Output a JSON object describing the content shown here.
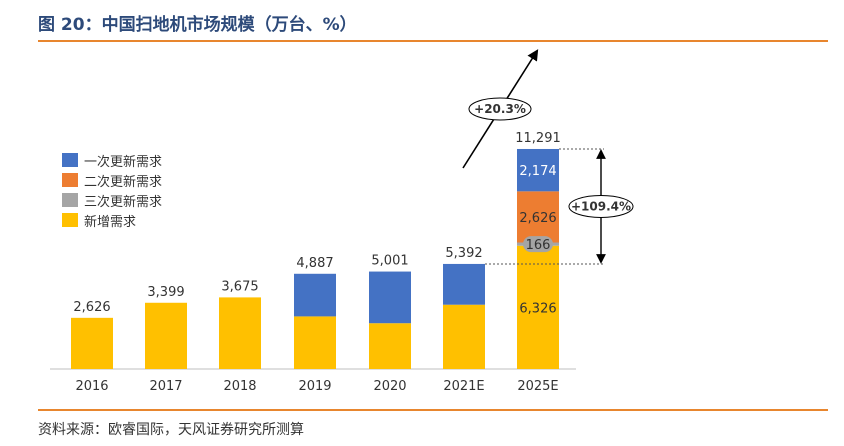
{
  "title": "图 20：中国扫地机市场规模（万台、%）",
  "source": "资料来源：欧睿国际，天风证券研究所测算",
  "colors": {
    "accent_rule": "#e8862e",
    "title": "#2d4a7a",
    "first_replacement": "#4472c4",
    "second_replacement": "#ed7d31",
    "third_replacement": "#a5a5a5",
    "new_demand": "#ffc000"
  },
  "chart_data": {
    "type": "bar",
    "stacked": true,
    "categories": [
      "2016",
      "2017",
      "2018",
      "2019",
      "2020",
      "2021E",
      "2025E"
    ],
    "series": [
      {
        "name": "新增需求",
        "key": "new_demand",
        "values": [
          2626,
          3399,
          3675,
          2700,
          2350,
          3300,
          6326
        ]
      },
      {
        "name": "三次更新需求",
        "key": "third_replacement",
        "values": [
          0,
          0,
          0,
          0,
          0,
          0,
          166
        ]
      },
      {
        "name": "二次更新需求",
        "key": "second_replacement",
        "values": [
          0,
          0,
          0,
          0,
          0,
          0,
          2626
        ]
      },
      {
        "name": "一次更新需求",
        "key": "first_replacement",
        "values": [
          0,
          0,
          0,
          2187,
          2651,
          2092,
          2174
        ]
      }
    ],
    "legend_order": [
      "一次更新需求",
      "二次更新需求",
      "三次更新需求",
      "新增需求"
    ],
    "totals": [
      "2,626",
      "3,399",
      "3,675",
      "4,887",
      "5,001",
      "5,392",
      "11,291"
    ],
    "segment_labels_2025E": {
      "new_demand": "6,326",
      "third_replacement": "166",
      "second_replacement": "2,626",
      "first_replacement": "2,174"
    },
    "annotations": [
      {
        "text": "+20.3%",
        "meaning": "growth arrow"
      },
      {
        "text": "+109.4%",
        "meaning": "2021E to 2025E increase"
      }
    ],
    "ylim": [
      0,
      11291
    ],
    "grid": false,
    "legend_position": "left"
  }
}
